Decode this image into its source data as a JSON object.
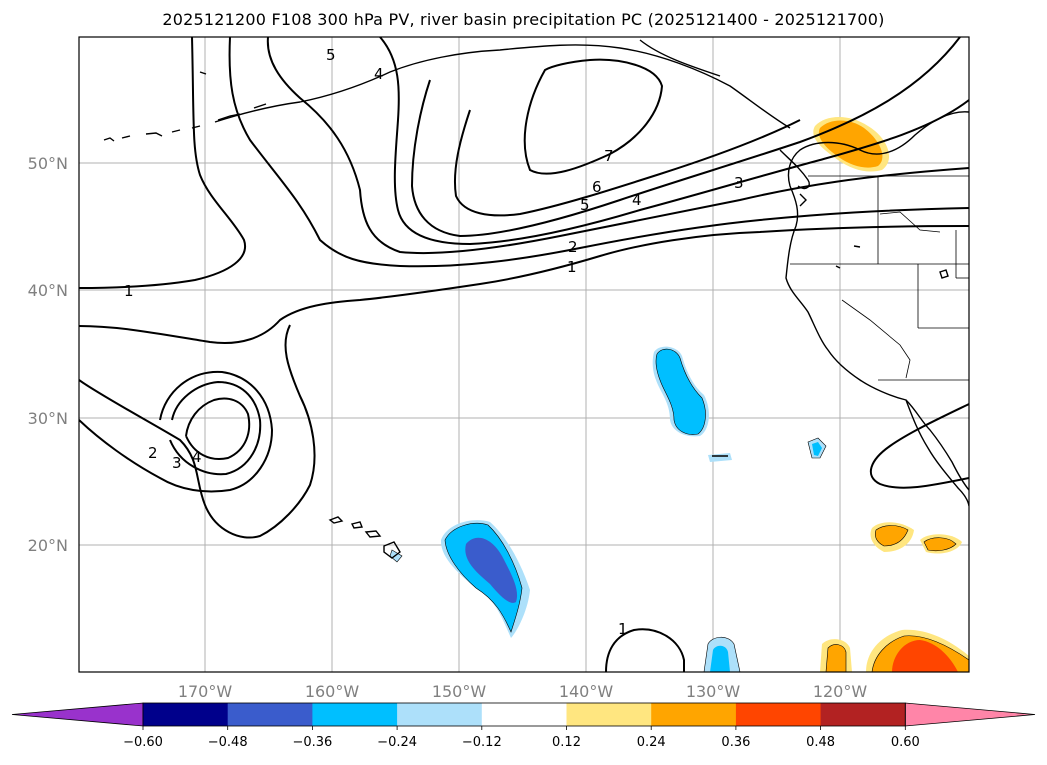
{
  "title": "2025121200 F108 300 hPa PV, river basin precipitation PC (2025121400 - 2025121700)",
  "map": {
    "lat_labels": [
      "50°N",
      "40°N",
      "30°N",
      "20°N"
    ],
    "lon_labels": [
      "170°W",
      "160°W",
      "150°W",
      "140°W",
      "130°W",
      "120°W"
    ],
    "pv_contour_labels": [
      "1",
      "1",
      "1",
      "2",
      "2",
      "3",
      "3",
      "4",
      "4",
      "4",
      "5",
      "5",
      "6",
      "7"
    ]
  },
  "colorbar": {
    "ticks": [
      "−0.60",
      "−0.48",
      "−0.36",
      "−0.24",
      "−0.12",
      "0.12",
      "0.24",
      "0.36",
      "0.48",
      "0.60"
    ],
    "colors": [
      "#9932cc",
      "#00008b",
      "#3a5ccc",
      "#00bfff",
      "#ade0fa",
      "#ffffff",
      "#ffe680",
      "#ffa500",
      "#ff4500",
      "#b22222",
      "#ff85a8"
    ]
  }
}
